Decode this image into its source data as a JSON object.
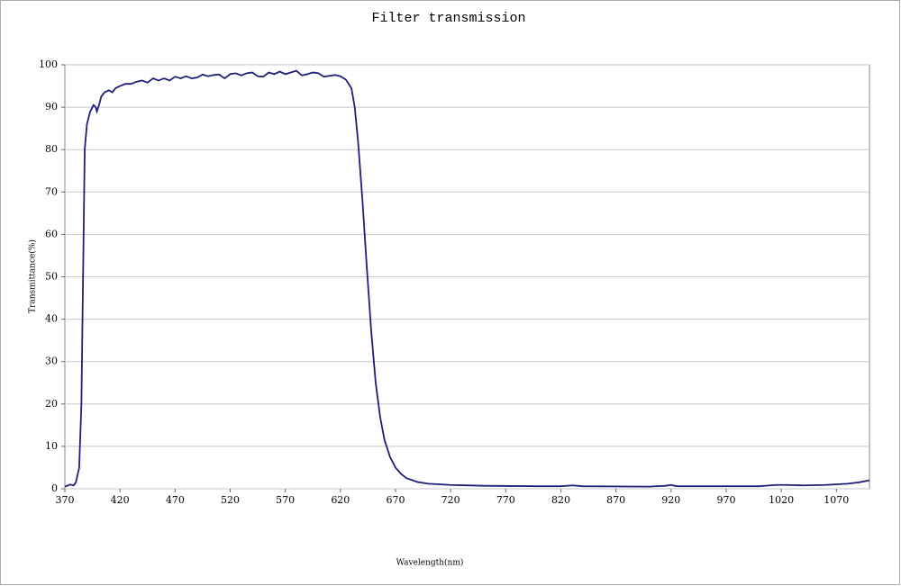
{
  "chart_data": {
    "type": "line",
    "title": "Filter transmission",
    "x_label": "Wavelength(nm)",
    "y_label": "Transmittance(%)",
    "x": [
      370,
      375,
      378,
      380,
      383,
      385,
      387,
      388,
      390,
      393,
      396,
      398,
      399,
      401,
      403,
      406,
      410,
      413,
      416,
      420,
      425,
      430,
      435,
      440,
      445,
      450,
      455,
      460,
      465,
      470,
      475,
      480,
      485,
      490,
      495,
      500,
      505,
      510,
      515,
      520,
      525,
      530,
      535,
      540,
      545,
      550,
      555,
      560,
      565,
      570,
      575,
      580,
      585,
      590,
      595,
      600,
      605,
      610,
      615,
      620,
      625,
      630,
      633,
      636,
      640,
      644,
      648,
      652,
      656,
      660,
      665,
      670,
      675,
      680,
      690,
      700,
      720,
      750,
      800,
      820,
      830,
      840,
      900,
      915,
      920,
      925,
      1000,
      1015,
      1025,
      1040,
      1060,
      1080,
      1090,
      1100
    ],
    "series": [
      {
        "name": "Transmittance",
        "color": "#1f1f7a",
        "values": [
          0.5,
          1,
          0.8,
          1.5,
          5,
          20,
          60,
          80,
          86,
          89,
          90.5,
          90,
          89,
          90.5,
          92.5,
          93.5,
          94,
          93.5,
          94.5,
          95,
          95.5,
          95.5,
          96,
          96.3,
          95.8,
          96.8,
          96.3,
          96.8,
          96.3,
          97.2,
          96.8,
          97.3,
          96.8,
          97,
          97.7,
          97.3,
          97.6,
          97.7,
          96.8,
          97.8,
          98,
          97.5,
          98,
          98.2,
          97.3,
          97.2,
          98.2,
          97.8,
          98.4,
          97.8,
          98.2,
          98.6,
          97.5,
          97.8,
          98.2,
          98,
          97.2,
          97.4,
          97.6,
          97.3,
          96.5,
          94.5,
          90,
          82,
          68,
          52,
          37,
          25,
          17,
          11.5,
          7.5,
          5,
          3.5,
          2.5,
          1.6,
          1.2,
          0.9,
          0.7,
          0.6,
          0.6,
          0.8,
          0.6,
          0.5,
          0.7,
          0.9,
          0.6,
          0.6,
          0.9,
          0.9,
          0.8,
          0.9,
          1.2,
          1.5,
          2
        ]
      }
    ],
    "xlim": [
      370,
      1100
    ],
    "xticks": [
      370,
      420,
      470,
      520,
      570,
      620,
      670,
      720,
      770,
      820,
      870,
      920,
      970,
      1020,
      1070
    ],
    "ylim": [
      0,
      100
    ],
    "yticks": [
      0,
      10,
      20,
      30,
      40,
      50,
      60,
      70,
      80,
      90,
      100
    ],
    "grid": true
  }
}
